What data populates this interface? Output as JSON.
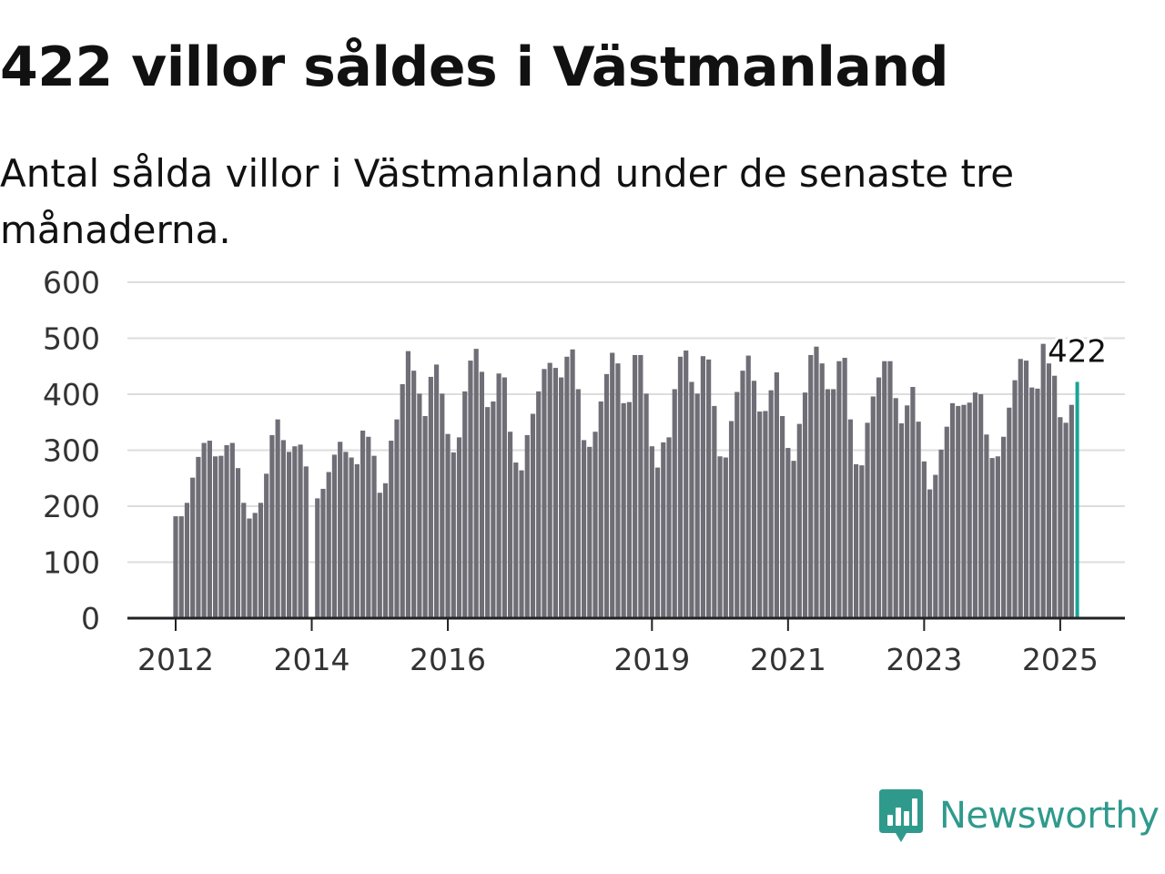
{
  "header": {
    "title": "422 villor såldes i Västmanland",
    "subtitle": "Antal sålda villor i Västmanland under de senaste tre månaderna."
  },
  "brand": {
    "name": "Newsworthy",
    "icon": "newsworthy-logo-icon",
    "color": "#2f9a8c"
  },
  "colors": {
    "bar": "#6f6e76",
    "highlight": "#1aa398",
    "grid": "#dddddd",
    "axis": "#222222"
  },
  "chart_data": {
    "type": "bar",
    "title": "",
    "xlabel": "",
    "ylabel": "",
    "ylim": [
      0,
      600
    ],
    "yticks": [
      "0",
      "100",
      "200",
      "300",
      "400",
      "500",
      "600"
    ],
    "xticks": [
      "2012",
      "2014",
      "2016",
      "2019",
      "2021",
      "2023",
      "2025"
    ],
    "grid": true,
    "start": "2012-01",
    "end": "2025-03",
    "values": [
      182,
      182,
      206,
      251,
      288,
      313,
      317,
      289,
      290,
      309,
      313,
      268,
      206,
      178,
      188,
      206,
      258,
      327,
      355,
      318,
      297,
      307,
      310,
      271,
      null,
      214,
      231,
      261,
      292,
      315,
      297,
      287,
      275,
      335,
      324,
      290,
      224,
      241,
      317,
      355,
      418,
      477,
      442,
      401,
      361,
      431,
      453,
      401,
      329,
      296,
      323,
      405,
      460,
      481,
      440,
      377,
      387,
      437,
      430,
      333,
      278,
      264,
      327,
      365,
      405,
      445,
      456,
      447,
      430,
      467,
      480,
      409,
      318,
      306,
      333,
      387,
      436,
      474,
      455,
      384,
      386,
      470,
      470,
      401,
      307,
      269,
      314,
      323,
      409,
      467,
      478,
      422,
      401,
      468,
      462,
      379,
      289,
      287,
      352,
      404,
      442,
      469,
      424,
      369,
      370,
      407,
      439,
      361,
      304,
      281,
      347,
      403,
      470,
      485,
      455,
      409,
      409,
      459,
      465,
      355,
      275,
      273,
      349,
      396,
      430,
      459,
      459,
      393,
      348,
      380,
      413,
      351,
      280,
      230,
      256,
      301,
      342,
      384,
      379,
      381,
      385,
      403,
      400,
      328,
      286,
      289,
      324,
      376,
      425,
      463,
      460,
      412,
      410,
      490,
      455,
      433,
      359,
      349,
      381,
      422
    ],
    "highlight_last": 1,
    "annotation": "422"
  }
}
